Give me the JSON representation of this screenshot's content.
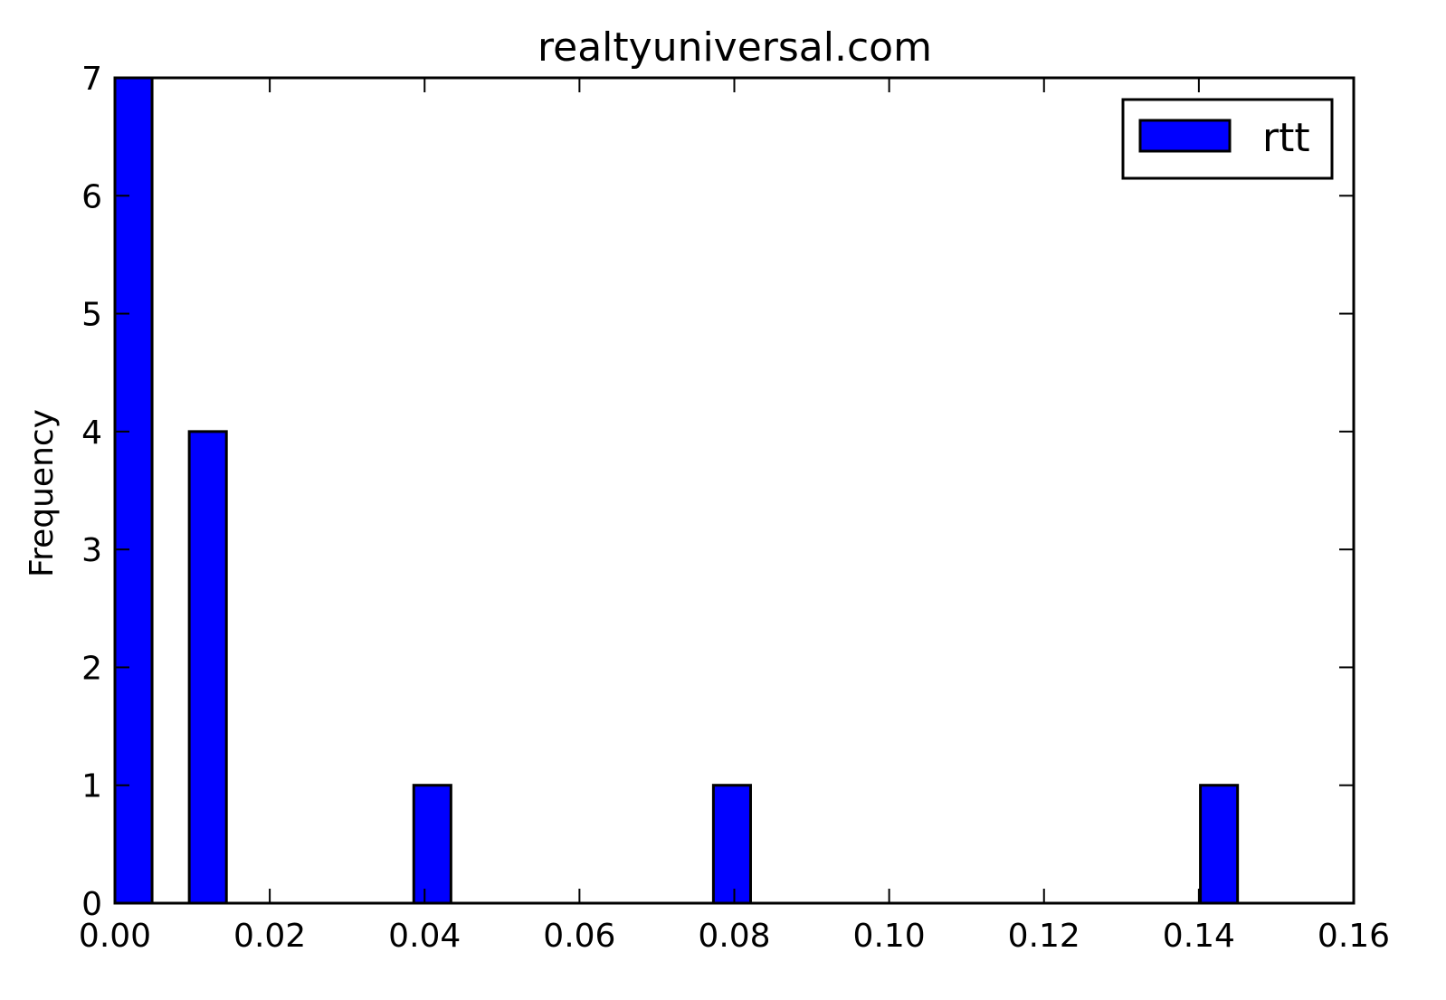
{
  "chart_data": {
    "type": "bar",
    "title": "realtyuniversal.com",
    "xlabel": "",
    "ylabel": "Frequency",
    "xlim": [
      0,
      0.16
    ],
    "ylim": [
      0,
      7
    ],
    "xticks": [
      "0.00",
      "0.02",
      "0.04",
      "0.06",
      "0.08",
      "0.10",
      "0.12",
      "0.14",
      "0.16"
    ],
    "yticks": [
      "0",
      "1",
      "2",
      "3",
      "4",
      "5",
      "6",
      "7"
    ],
    "bins": [
      {
        "start": 0.0,
        "end": 0.0048,
        "count": 7
      },
      {
        "start": 0.0096,
        "end": 0.0144,
        "count": 4
      },
      {
        "start": 0.0386,
        "end": 0.0434,
        "count": 1
      },
      {
        "start": 0.0773,
        "end": 0.0821,
        "count": 1
      },
      {
        "start": 0.1402,
        "end": 0.145,
        "count": 1
      }
    ],
    "series": [
      {
        "name": "rtt",
        "color": "#0000ff"
      }
    ],
    "legend_position": "top-right",
    "grid": false
  }
}
